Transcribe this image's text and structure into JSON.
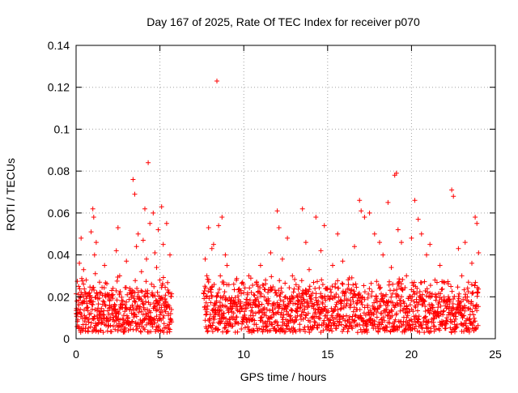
{
  "chart_data": {
    "type": "scatter",
    "title": "Day 167 of 2025, Rate Of TEC Index for receiver p070",
    "xlabel": "GPS time / hours",
    "ylabel": "ROTI / TECUs",
    "xlim": [
      0,
      25
    ],
    "ylim": [
      0,
      0.14
    ],
    "xticks": [
      0,
      5,
      10,
      15,
      20,
      25
    ],
    "xtick_labels": [
      "0",
      "5",
      "10",
      "15",
      "20",
      "25"
    ],
    "yticks": [
      0,
      0.02,
      0.04,
      0.06,
      0.08,
      0.1,
      0.12,
      0.14
    ],
    "ytick_labels": [
      "0",
      "0.02",
      "0.04",
      "0.06",
      "0.08",
      "0.1",
      "0.12",
      "0.14"
    ],
    "grid": true,
    "marker": "+",
    "color": "#ff0000",
    "series": [
      {
        "name": "ROTI",
        "points": [
          [
            0.0,
            0.012
          ],
          [
            0.05,
            0.018
          ],
          [
            0.1,
            0.009
          ],
          [
            0.15,
            0.025
          ],
          [
            0.2,
            0.036
          ],
          [
            0.25,
            0.014
          ],
          [
            0.3,
            0.048
          ],
          [
            0.35,
            0.021
          ],
          [
            0.45,
            0.033
          ],
          [
            0.5,
            0.011
          ],
          [
            0.6,
            0.028
          ],
          [
            0.7,
            0.015
          ],
          [
            0.8,
            0.022
          ],
          [
            0.9,
            0.051
          ],
          [
            1.0,
            0.062
          ],
          [
            1.05,
            0.058
          ],
          [
            1.1,
            0.04
          ],
          [
            1.15,
            0.031
          ],
          [
            1.2,
            0.046
          ],
          [
            1.3,
            0.019
          ],
          [
            1.4,
            0.027
          ],
          [
            1.5,
            0.013
          ],
          [
            1.7,
            0.035
          ],
          [
            1.9,
            0.02
          ],
          [
            2.0,
            0.016
          ],
          [
            2.2,
            0.024
          ],
          [
            2.4,
            0.042
          ],
          [
            2.5,
            0.053
          ],
          [
            2.6,
            0.03
          ],
          [
            2.8,
            0.018
          ],
          [
            3.0,
            0.037
          ],
          [
            3.2,
            0.022
          ],
          [
            3.4,
            0.076
          ],
          [
            3.5,
            0.069
          ],
          [
            3.6,
            0.044
          ],
          [
            3.7,
            0.05
          ],
          [
            3.9,
            0.032
          ],
          [
            4.0,
            0.047
          ],
          [
            4.1,
            0.062
          ],
          [
            4.2,
            0.038
          ],
          [
            4.3,
            0.084
          ],
          [
            4.4,
            0.055
          ],
          [
            4.5,
            0.026
          ],
          [
            4.6,
            0.06
          ],
          [
            4.7,
            0.041
          ],
          [
            4.8,
            0.034
          ],
          [
            4.9,
            0.052
          ],
          [
            5.0,
            0.028
          ],
          [
            5.1,
            0.063
          ],
          [
            5.2,
            0.045
          ],
          [
            5.3,
            0.019
          ],
          [
            5.4,
            0.055
          ],
          [
            5.5,
            0.012
          ],
          [
            5.6,
            0.04
          ],
          [
            5.7,
            0.008
          ],
          [
            7.7,
            0.038
          ],
          [
            7.75,
            0.02
          ],
          [
            7.8,
            0.03
          ],
          [
            7.9,
            0.053
          ],
          [
            8.0,
            0.024
          ],
          [
            8.1,
            0.043
          ],
          [
            8.2,
            0.045
          ],
          [
            8.3,
            0.016
          ],
          [
            8.4,
            0.123
          ],
          [
            8.5,
            0.054
          ],
          [
            8.6,
            0.03
          ],
          [
            8.7,
            0.058
          ],
          [
            8.8,
            0.027
          ],
          [
            8.9,
            0.04
          ],
          [
            9.0,
            0.035
          ],
          [
            9.2,
            0.018
          ],
          [
            9.4,
            0.026
          ],
          [
            9.6,
            0.014
          ],
          [
            10.0,
            0.022
          ],
          [
            10.3,
            0.03
          ],
          [
            10.6,
            0.017
          ],
          [
            11.0,
            0.035
          ],
          [
            11.3,
            0.028
          ],
          [
            11.6,
            0.041
          ],
          [
            12.0,
            0.061
          ],
          [
            12.1,
            0.053
          ],
          [
            12.3,
            0.038
          ],
          [
            12.6,
            0.048
          ],
          [
            12.9,
            0.03
          ],
          [
            13.2,
            0.02
          ],
          [
            13.5,
            0.062
          ],
          [
            13.7,
            0.046
          ],
          [
            13.9,
            0.033
          ],
          [
            14.3,
            0.058
          ],
          [
            14.6,
            0.042
          ],
          [
            14.8,
            0.054
          ],
          [
            15.0,
            0.024
          ],
          [
            15.3,
            0.035
          ],
          [
            15.6,
            0.05
          ],
          [
            15.9,
            0.037
          ],
          [
            16.3,
            0.029
          ],
          [
            16.6,
            0.044
          ],
          [
            16.9,
            0.066
          ],
          [
            17.0,
            0.061
          ],
          [
            17.2,
            0.058
          ],
          [
            17.5,
            0.06
          ],
          [
            17.8,
            0.05
          ],
          [
            18.1,
            0.046
          ],
          [
            18.3,
            0.04
          ],
          [
            18.6,
            0.065
          ],
          [
            18.8,
            0.034
          ],
          [
            19.0,
            0.078
          ],
          [
            19.1,
            0.079
          ],
          [
            19.2,
            0.052
          ],
          [
            19.4,
            0.046
          ],
          [
            19.7,
            0.03
          ],
          [
            20.0,
            0.048
          ],
          [
            20.2,
            0.066
          ],
          [
            20.4,
            0.057
          ],
          [
            20.6,
            0.05
          ],
          [
            20.9,
            0.04
          ],
          [
            21.1,
            0.045
          ],
          [
            21.4,
            0.028
          ],
          [
            21.7,
            0.035
          ],
          [
            22.0,
            0.018
          ],
          [
            22.2,
            0.02
          ],
          [
            22.4,
            0.071
          ],
          [
            22.5,
            0.068
          ],
          [
            22.8,
            0.043
          ],
          [
            23.0,
            0.03
          ],
          [
            23.2,
            0.046
          ],
          [
            23.4,
            0.027
          ],
          [
            23.6,
            0.036
          ],
          [
            23.8,
            0.058
          ],
          [
            23.9,
            0.055
          ],
          [
            24.0,
            0.041
          ]
        ],
        "dense_band": {
          "ranges_hours": [
            [
              0.0,
              5.7
            ],
            [
              7.6,
              24.0
            ]
          ],
          "typical_range": [
            0.003,
            0.03
          ],
          "note": "thousands of overlapping points form a solid red band near the baseline"
        }
      }
    ]
  }
}
